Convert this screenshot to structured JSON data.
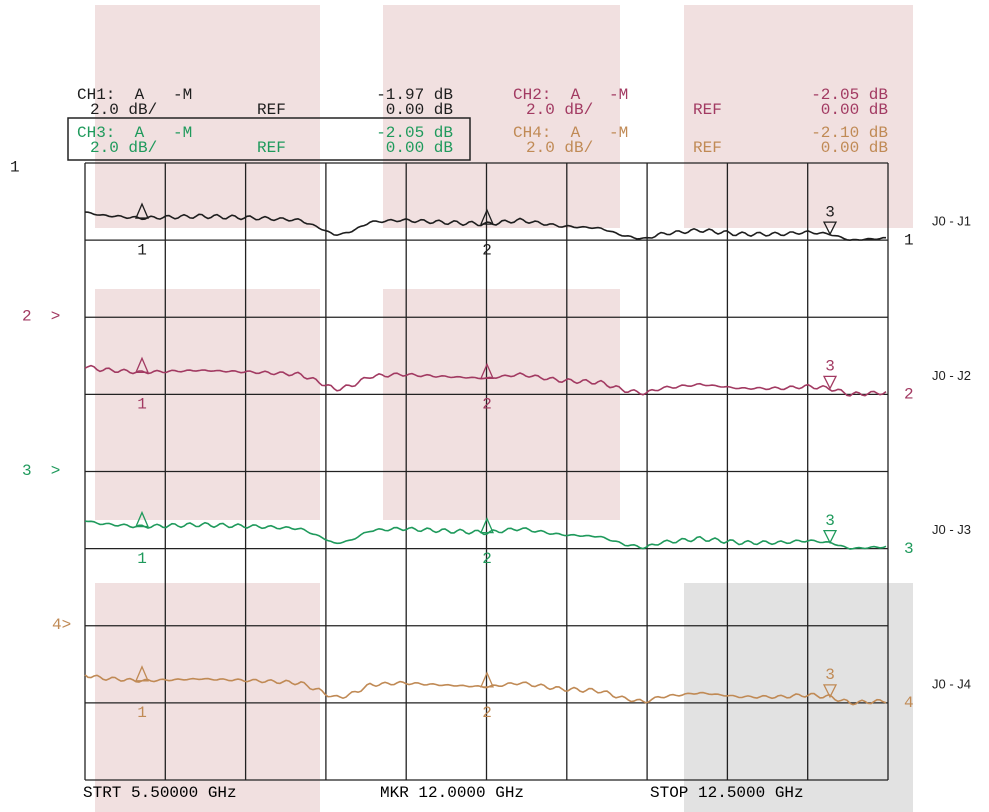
{
  "header": {
    "channels": [
      {
        "name": "CH1:  A   -M",
        "marker_value": "-1.97 dB",
        "scale": "2.0 dB/",
        "ref_label": "REF",
        "ref_value": "0.00 dB"
      },
      {
        "name": "CH2:  A   -M",
        "marker_value": "-2.05 dB",
        "scale": "2.0 dB/",
        "ref_label": "REF",
        "ref_value": "0.00 dB"
      },
      {
        "name": "CH3:  A   -M",
        "marker_value": "-2.05 dB",
        "scale": "2.0 dB/",
        "ref_label": "REF",
        "ref_value": "0.00 dB"
      },
      {
        "name": "CH4:  A   -M",
        "marker_value": "-2.10 dB",
        "scale": "2.0 dB/",
        "ref_label": "REF",
        "ref_value": "0.00 dB"
      }
    ]
  },
  "traces": [
    {
      "color": "#1e1e1e",
      "ref_marker": "1",
      "end_label": "1",
      "port_label": "J0 - J1",
      "markers": [
        "1",
        "2",
        "3"
      ]
    },
    {
      "color": "#a23a62",
      "ref_marker": "2  >",
      "end_label": "2",
      "port_label": "J0 - J2",
      "markers": [
        "1",
        "2",
        "3"
      ]
    },
    {
      "color": "#1f9a5c",
      "ref_marker": "3  >",
      "end_label": "3",
      "port_label": "J0 - J3",
      "markers": [
        "1",
        "2",
        "3"
      ]
    },
    {
      "color": "#c08a55",
      "ref_marker": "4>",
      "end_label": "4",
      "port_label": "J0 - J4",
      "markers": [
        "1",
        "2",
        "3"
      ]
    }
  ],
  "footer": {
    "start": "STRT 5.50000 GHz",
    "marker": "MKR 12.0000 GHz",
    "stop": "STOP 12.5000 GHz"
  }
}
